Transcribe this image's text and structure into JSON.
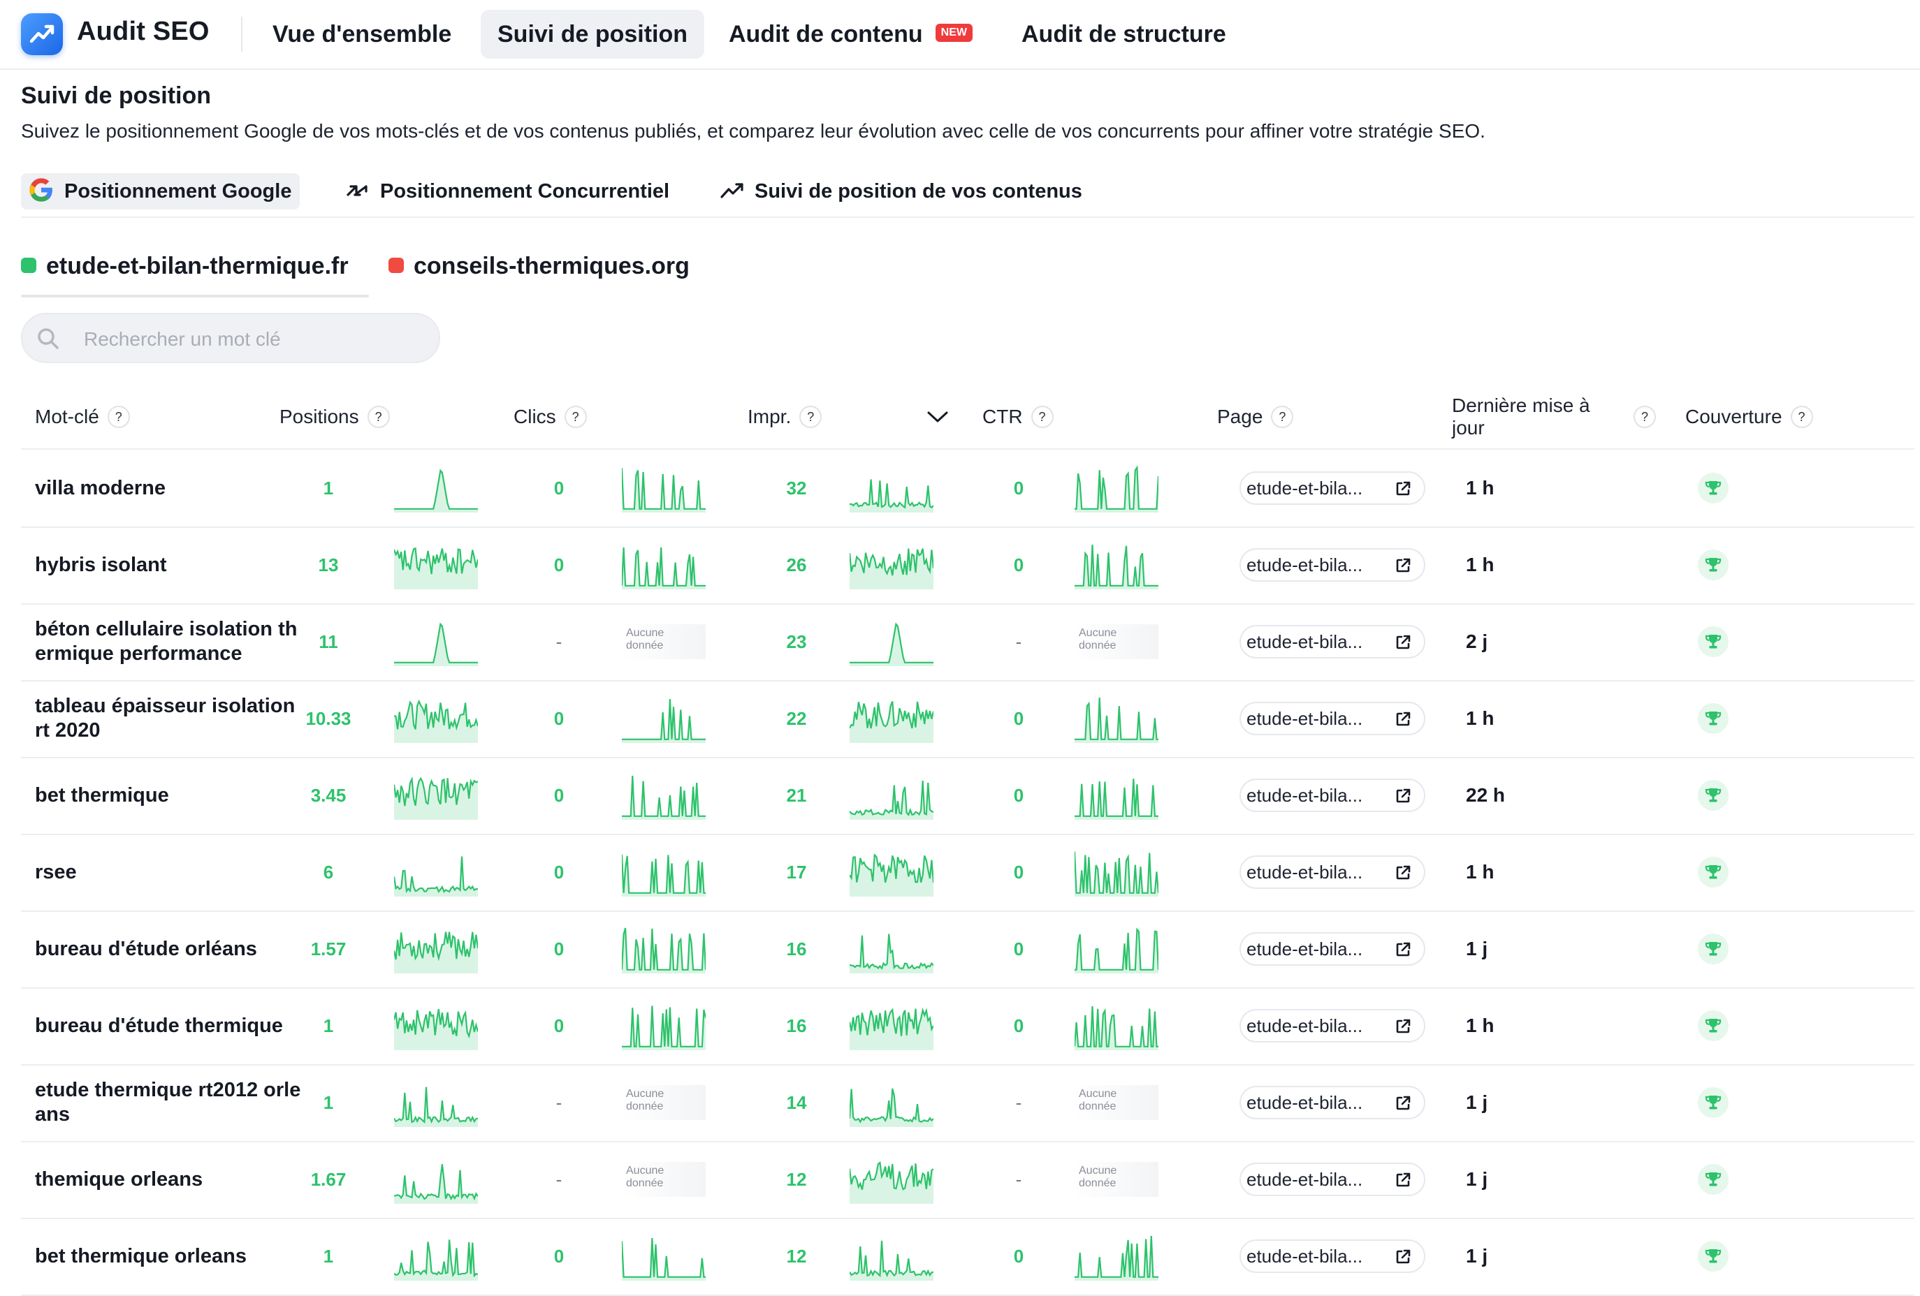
{
  "app": {
    "title": "Audit SEO"
  },
  "nav": {
    "tabs": [
      {
        "label": "Vue d'ensemble"
      },
      {
        "label": "Suivi de position"
      },
      {
        "label": "Audit de contenu",
        "badge": "NEW"
      },
      {
        "label": "Audit de structure"
      }
    ]
  },
  "header": {
    "title": "Suivi de position",
    "description": "Suivez le positionnement Google de vos mots-clés et de vos contenus publiés, et comparez leur évolution avec celle de vos concurrents pour affiner votre stratégie SEO."
  },
  "subtabs": [
    {
      "label": "Positionnement Google",
      "icon": "google-icon"
    },
    {
      "label": "Positionnement Concurrentiel",
      "icon": "swap-arrows-icon"
    },
    {
      "label": "Suivi de position de vos contenus",
      "icon": "trend-up-icon"
    }
  ],
  "sites": [
    {
      "name": "etude-et-bilan-thermique.fr",
      "color": "#2dc26b"
    },
    {
      "name": "conseils-thermiques.org",
      "color": "#ef4b3f"
    }
  ],
  "search": {
    "placeholder": "Rechercher un mot clé"
  },
  "columns": {
    "keyword": "Mot-clé",
    "positions": "Positions",
    "clicks": "Clics",
    "impressions": "Impr.",
    "ctr": "CTR",
    "page": "Page",
    "last_update": "Dernière mise à jour",
    "coverage": "Couverture",
    "help": "?"
  },
  "no_data_label": "Aucune donnée",
  "accent_color": "#2dc26b",
  "rows": [
    {
      "keyword": "villa moderne",
      "position": "1",
      "clicks": "0",
      "impressions": "32",
      "ctr": "0",
      "page": "etude-et-bila...",
      "updated": "1 h"
    },
    {
      "keyword": "hybris isolant",
      "position": "13",
      "clicks": "0",
      "impressions": "26",
      "ctr": "0",
      "page": "etude-et-bila...",
      "updated": "1 h"
    },
    {
      "keyword": "béton cellulaire isolation thermique performance",
      "position": "11",
      "clicks": "-",
      "impressions": "23",
      "ctr": "-",
      "page": "etude-et-bila...",
      "updated": "2 j"
    },
    {
      "keyword": "tableau épaisseur isolation rt 2020",
      "position": "10.33",
      "clicks": "0",
      "impressions": "22",
      "ctr": "0",
      "page": "etude-et-bila...",
      "updated": "1 h"
    },
    {
      "keyword": "bet thermique",
      "position": "3.45",
      "clicks": "0",
      "impressions": "21",
      "ctr": "0",
      "page": "etude-et-bila...",
      "updated": "22 h"
    },
    {
      "keyword": "rsee",
      "position": "6",
      "clicks": "0",
      "impressions": "17",
      "ctr": "0",
      "page": "etude-et-bila...",
      "updated": "1 h"
    },
    {
      "keyword": "bureau d'étude orléans",
      "position": "1.57",
      "clicks": "0",
      "impressions": "16",
      "ctr": "0",
      "page": "etude-et-bila...",
      "updated": "1 j"
    },
    {
      "keyword": "bureau d'étude thermique",
      "position": "1",
      "clicks": "0",
      "impressions": "16",
      "ctr": "0",
      "page": "etude-et-bila...",
      "updated": "1 h"
    },
    {
      "keyword": "etude thermique rt2012 orleans",
      "position": "1",
      "clicks": "-",
      "impressions": "14",
      "ctr": "-",
      "page": "etude-et-bila...",
      "updated": "1 j"
    },
    {
      "keyword": "themique orleans",
      "position": "1.67",
      "clicks": "-",
      "impressions": "12",
      "ctr": "-",
      "page": "etude-et-bila...",
      "updated": "1 j"
    },
    {
      "keyword": "bet thermique orleans",
      "position": "1",
      "clicks": "0",
      "impressions": "12",
      "ctr": "0",
      "page": "etude-et-bila...",
      "updated": "1 j"
    }
  ]
}
